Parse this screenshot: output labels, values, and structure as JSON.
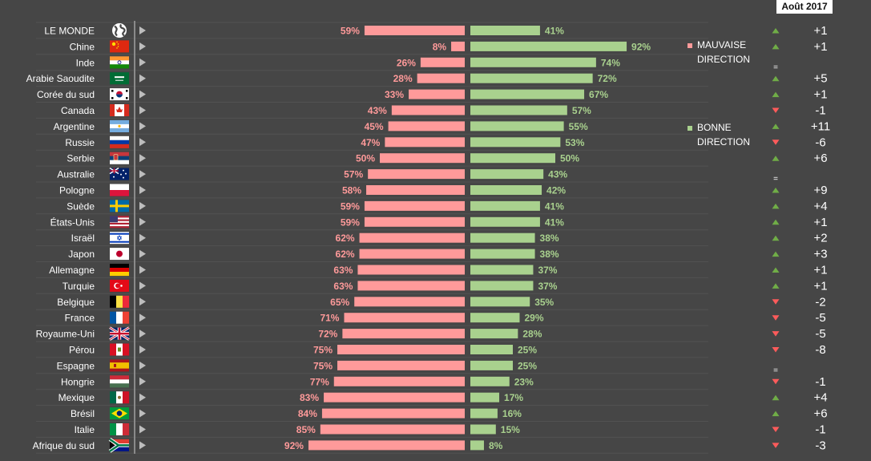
{
  "date_label": "Août 2017",
  "legend": {
    "bad": {
      "line1": "MAUVAISE",
      "line2": "DIRECTION"
    },
    "good": {
      "line1": "BONNE",
      "line2": "DIRECTION"
    }
  },
  "colors": {
    "background": "#464646",
    "bad": "#ff9a9a",
    "good": "#a9d18e",
    "bad_text": "#ff9a9a",
    "good_text": "#a9d18e",
    "up": "#70ad47",
    "down": "#ff5b5b",
    "label": "#ffffff"
  },
  "chart_data": {
    "type": "bar",
    "categories": [
      "LE MONDE",
      "Chine",
      "Inde",
      "Arabie Saoudite",
      "Corée du sud",
      "Canada",
      "Argentine",
      "Russie",
      "Serbie",
      "Australie",
      "Pologne",
      "Suède",
      "États-Unis",
      "Israël",
      "Japon",
      "Allemagne",
      "Turquie",
      "Belgique",
      "France",
      "Royaume-Uni",
      "Pérou",
      "Espagne",
      "Hongrie",
      "Mexique",
      "Brésil",
      "Italie",
      "Afrique du sud"
    ],
    "flags": [
      "globe",
      "china",
      "india",
      "saudi",
      "korea",
      "canada",
      "argentina",
      "russia",
      "serbia",
      "australia",
      "poland",
      "sweden",
      "usa",
      "israel",
      "japan",
      "germany",
      "turkey",
      "belgium",
      "france",
      "uk",
      "peru",
      "spain",
      "hungary",
      "mexico",
      "brazil",
      "italy",
      "southafrica"
    ],
    "series": [
      {
        "name": "MAUVAISE DIRECTION",
        "values": [
          59,
          8,
          26,
          28,
          33,
          43,
          45,
          47,
          50,
          57,
          58,
          59,
          59,
          62,
          62,
          63,
          63,
          65,
          71,
          72,
          75,
          75,
          77,
          83,
          84,
          85,
          92
        ]
      },
      {
        "name": "BONNE DIRECTION",
        "values": [
          41,
          92,
          74,
          72,
          67,
          57,
          55,
          53,
          50,
          43,
          42,
          41,
          41,
          38,
          38,
          37,
          37,
          35,
          29,
          28,
          25,
          25,
          23,
          17,
          16,
          15,
          8
        ]
      }
    ],
    "changes": [
      "+1",
      "+1",
      "=",
      "+5",
      "+1",
      "-1",
      "+11",
      "-6",
      "+6",
      "=",
      "+9",
      "+4",
      "+1",
      "+2",
      "+3",
      "+1",
      "+1",
      "-2",
      "-5",
      "-5",
      "-8",
      "=",
      "-1",
      "+4",
      "+6",
      "-1",
      "-3"
    ],
    "xlim": [
      0,
      100
    ]
  }
}
